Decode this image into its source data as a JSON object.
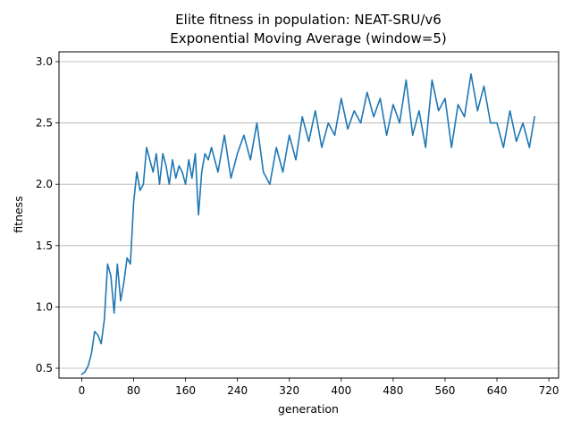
{
  "chart_data": {
    "type": "line",
    "title": "Elite fitness in population: NEAT-SRU/v6",
    "subtitle": "Exponential Moving Average (window=5)",
    "xlabel": "generation",
    "ylabel": "fitness",
    "xlim": [
      -35,
      735
    ],
    "ylim": [
      0.42,
      3.08
    ],
    "xticks": [
      0,
      80,
      160,
      240,
      320,
      400,
      480,
      560,
      640,
      720
    ],
    "yticks": [
      0.5,
      1.0,
      1.5,
      2.0,
      2.5,
      3.0
    ],
    "ytick_labels": [
      "0.5",
      "1.0",
      "1.5",
      "2.0",
      "2.5",
      "3.0"
    ],
    "grid": "y",
    "legend": "none",
    "series_color": "#1f77b4",
    "series": [
      {
        "x": [
          0,
          5,
          10,
          15,
          20,
          25,
          30,
          35,
          40,
          45,
          50,
          55,
          60,
          65,
          70,
          75,
          80,
          85,
          90,
          95,
          100,
          105,
          110,
          115,
          120,
          125,
          130,
          135,
          140,
          145,
          150,
          155,
          160,
          165,
          170,
          175,
          180,
          185,
          190,
          195,
          200,
          210,
          220,
          230,
          240,
          250,
          260,
          270,
          280,
          290,
          300,
          310,
          320,
          330,
          340,
          350,
          360,
          370,
          380,
          390,
          400,
          410,
          420,
          430,
          440,
          450,
          460,
          470,
          480,
          490,
          500,
          510,
          520,
          530,
          540,
          550,
          560,
          570,
          580,
          590,
          600,
          610,
          620,
          630,
          640,
          650,
          660,
          670,
          680,
          690,
          698
        ],
        "y": [
          0.45,
          0.47,
          0.52,
          0.62,
          0.8,
          0.77,
          0.7,
          0.9,
          1.35,
          1.25,
          0.95,
          1.35,
          1.05,
          1.2,
          1.4,
          1.35,
          1.85,
          2.1,
          1.95,
          2.0,
          2.3,
          2.2,
          2.1,
          2.25,
          2.0,
          2.25,
          2.15,
          2.0,
          2.2,
          2.05,
          2.15,
          2.1,
          2.0,
          2.2,
          2.05,
          2.25,
          1.75,
          2.1,
          2.25,
          2.2,
          2.3,
          2.1,
          2.4,
          2.05,
          2.25,
          2.4,
          2.2,
          2.5,
          2.1,
          2.0,
          2.3,
          2.1,
          2.4,
          2.2,
          2.55,
          2.35,
          2.6,
          2.3,
          2.5,
          2.4,
          2.7,
          2.45,
          2.6,
          2.5,
          2.75,
          2.55,
          2.7,
          2.4,
          2.65,
          2.5,
          2.85,
          2.4,
          2.6,
          2.3,
          2.85,
          2.6,
          2.7,
          2.3,
          2.65,
          2.55,
          2.9,
          2.6,
          2.8,
          2.5,
          2.5,
          2.3,
          2.6,
          2.35,
          2.5,
          2.3,
          2.55
        ]
      }
    ]
  }
}
